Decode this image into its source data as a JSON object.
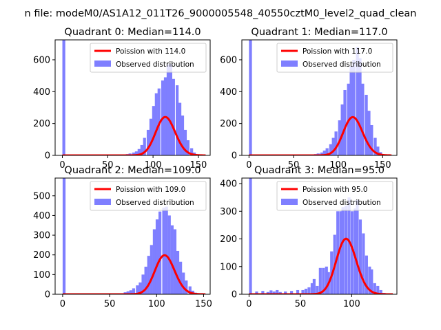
{
  "suptitle": "n file: modeM0/AS1A12_011T26_9000005548_40550cztM0_level2_quad_clean",
  "colors": {
    "poisson": "#ff0000",
    "observed": "#7f7fff",
    "axis": "#000000"
  },
  "chart_data": [
    {
      "type": "bar",
      "title": "Quadrant 0: Median=114.0",
      "xlim": [
        -8,
        163
      ],
      "ylim": [
        0,
        725
      ],
      "xticks": [
        0,
        50,
        100,
        150
      ],
      "yticks": [
        0,
        200,
        400,
        600
      ],
      "legend_position": "upper-right",
      "series": [
        {
          "name": "Poission with 114.0",
          "kind": "line",
          "lambda": 114.0,
          "x_range": [
            0,
            158
          ]
        },
        {
          "name": "Observed distribution",
          "kind": "histogram",
          "bin_width": 3.2,
          "x": [
            0,
            64,
            67,
            70,
            73,
            77,
            80,
            83,
            86,
            89,
            93,
            96,
            99,
            102,
            105,
            109,
            112,
            115,
            118,
            121,
            125,
            128,
            131,
            134,
            137,
            141,
            144,
            147
          ],
          "values": [
            725,
            3,
            6,
            8,
            12,
            18,
            25,
            40,
            65,
            110,
            160,
            230,
            310,
            390,
            420,
            470,
            490,
            570,
            575,
            480,
            440,
            330,
            250,
            160,
            95,
            45,
            18,
            6
          ]
        }
      ]
    },
    {
      "type": "bar",
      "title": "Quadrant 1: Median=117.0",
      "xlim": [
        -8,
        166
      ],
      "ylim": [
        0,
        725
      ],
      "xticks": [
        0,
        50,
        100,
        150
      ],
      "yticks": [
        0,
        200,
        400,
        600
      ],
      "legend_position": "upper-right",
      "series": [
        {
          "name": "Poission with 117.0",
          "kind": "line",
          "lambda": 117.0,
          "x_range": [
            0,
            160
          ]
        },
        {
          "name": "Observed distribution",
          "kind": "histogram",
          "bin_width": 3.3,
          "x": [
            0,
            70,
            73,
            76,
            80,
            83,
            86,
            90,
            93,
            96,
            100,
            103,
            106,
            110,
            113,
            116,
            120,
            123,
            126,
            130,
            133,
            136,
            140,
            143,
            146,
            150
          ],
          "values": [
            725,
            3,
            8,
            12,
            18,
            30,
            45,
            70,
            110,
            150,
            220,
            320,
            410,
            450,
            560,
            600,
            680,
            610,
            450,
            380,
            280,
            190,
            110,
            55,
            20,
            5
          ]
        }
      ]
    },
    {
      "type": "bar",
      "title": "Quadrant 2: Median=109.0",
      "xlim": [
        -8,
        157
      ],
      "ylim": [
        0,
        590
      ],
      "xticks": [
        0,
        50,
        100,
        150
      ],
      "yticks": [
        0,
        100,
        200,
        300,
        400,
        500
      ],
      "legend_position": "upper-right",
      "series": [
        {
          "name": "Poission with 109.0",
          "kind": "line",
          "lambda": 109.0,
          "x_range": [
            0,
            152
          ]
        },
        {
          "name": "Observed distribution",
          "kind": "histogram",
          "bin_width": 3.1,
          "x": [
            0,
            62,
            65,
            68,
            71,
            74,
            78,
            81,
            84,
            87,
            90,
            93,
            96,
            99,
            102,
            106,
            109,
            112,
            115,
            118,
            121,
            124,
            127,
            130,
            134,
            137,
            140,
            143
          ],
          "values": [
            590,
            4,
            10,
            15,
            20,
            30,
            45,
            60,
            100,
            140,
            195,
            250,
            330,
            380,
            420,
            440,
            445,
            400,
            350,
            330,
            220,
            165,
            110,
            70,
            40,
            18,
            8,
            3
          ]
        }
      ]
    },
    {
      "type": "bar",
      "title": "Quadrant 3: Median=95.0",
      "xlim": [
        -7,
        144
      ],
      "ylim": [
        0,
        420
      ],
      "xticks": [
        0,
        50,
        100
      ],
      "yticks": [
        0,
        100,
        200,
        300,
        400
      ],
      "legend_position": "upper-right",
      "series": [
        {
          "name": "Poission with 95.0",
          "kind": "line",
          "lambda": 95.0,
          "x_range": [
            0,
            140
          ]
        },
        {
          "name": "Observed distribution",
          "kind": "histogram",
          "bin_width": 2.8,
          "x": [
            0,
            6,
            12,
            17,
            20,
            23,
            26,
            29,
            34,
            40,
            46,
            51,
            54,
            57,
            60,
            62,
            65,
            68,
            71,
            74,
            76,
            79,
            82,
            85,
            88,
            90,
            93,
            96,
            99,
            102,
            104,
            107,
            110,
            113,
            116,
            118,
            121,
            124,
            127,
            130
          ],
          "values": [
            420,
            10,
            12,
            8,
            14,
            10,
            15,
            8,
            10,
            12,
            15,
            15,
            20,
            25,
            40,
            55,
            30,
            95,
            95,
            100,
            80,
            155,
            215,
            300,
            300,
            315,
            320,
            350,
            300,
            310,
            340,
            270,
            220,
            140,
            100,
            90,
            40,
            30,
            15,
            5
          ]
        }
      ]
    }
  ]
}
